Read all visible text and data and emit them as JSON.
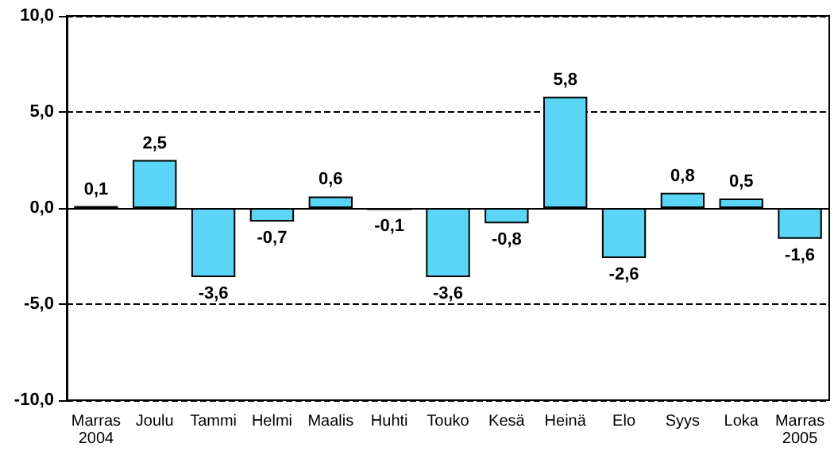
{
  "chart_data": {
    "type": "bar",
    "categories": [
      "Marras\n2004",
      "Joulu",
      "Tammi",
      "Helmi",
      "Maalis",
      "Huhti",
      "Touko",
      "Kesä",
      "Heinä",
      "Elo",
      "Syys",
      "Loka",
      "Marras\n2005"
    ],
    "values": [
      0.1,
      2.5,
      -3.6,
      -0.7,
      0.6,
      -0.1,
      -3.6,
      -0.8,
      5.8,
      -2.6,
      0.8,
      0.5,
      -1.6
    ],
    "value_labels": [
      "0,1",
      "2,5",
      "-3,6",
      "-0,7",
      "0,6",
      "-0,1",
      "-3,6",
      "-0,8",
      "5,8",
      "-2,6",
      "0,8",
      "0,5",
      "-1,6"
    ],
    "color": "#5bd5f5",
    "ylim": [
      -10,
      10
    ],
    "yticks": [
      {
        "value": -10,
        "label": "-10,0"
      },
      {
        "value": -5,
        "label": "-5,0"
      },
      {
        "value": 0,
        "label": "0,0"
      },
      {
        "value": 5,
        "label": "5,0"
      },
      {
        "value": 10,
        "label": "10,0"
      }
    ],
    "grid": "y",
    "line_style": "dashed"
  }
}
